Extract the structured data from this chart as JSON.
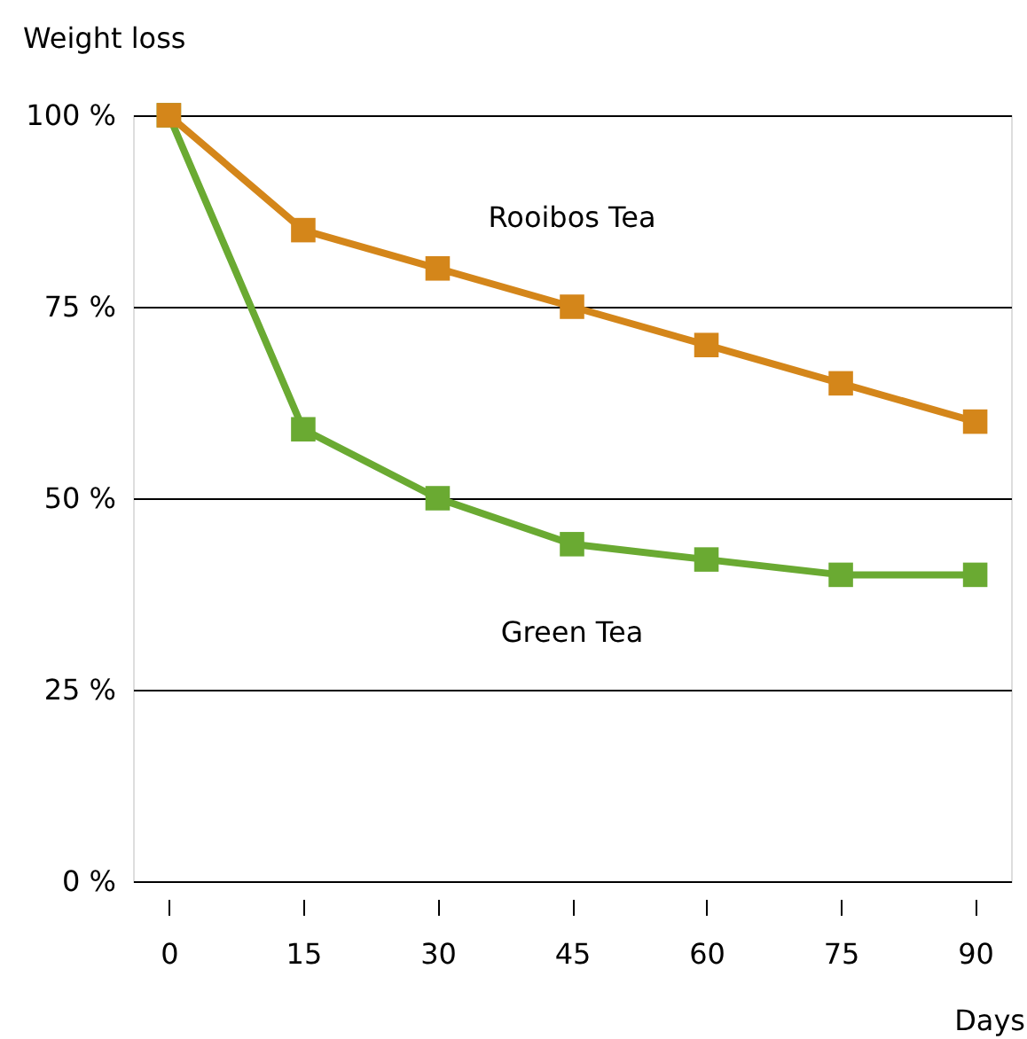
{
  "chart_data": {
    "type": "line",
    "xlabel": "Days",
    "ylabel": "Weight loss",
    "x": [
      0,
      15,
      30,
      45,
      60,
      75,
      90
    ],
    "series": [
      {
        "name": "Rooibos Tea",
        "color": "#d4861a",
        "values": [
          100,
          85,
          80,
          75,
          70,
          65,
          60
        ]
      },
      {
        "name": "Green Tea",
        "color": "#6aaa32",
        "values": [
          100,
          59,
          50,
          44,
          42,
          40,
          40
        ]
      }
    ],
    "xlim": [
      -4,
      94
    ],
    "xticks": [
      0,
      15,
      30,
      45,
      60,
      75,
      90
    ],
    "ylim": [
      0,
      100
    ],
    "yticks": [
      {
        "value": 0,
        "label": "0 %"
      },
      {
        "value": 25,
        "label": "25 %"
      },
      {
        "value": 50,
        "label": "50 %"
      },
      {
        "value": 75,
        "label": "75 %"
      },
      {
        "value": 100,
        "label": "100 %"
      }
    ],
    "grid": "y",
    "marker": "square",
    "line_style": "solid",
    "legend": false
  }
}
